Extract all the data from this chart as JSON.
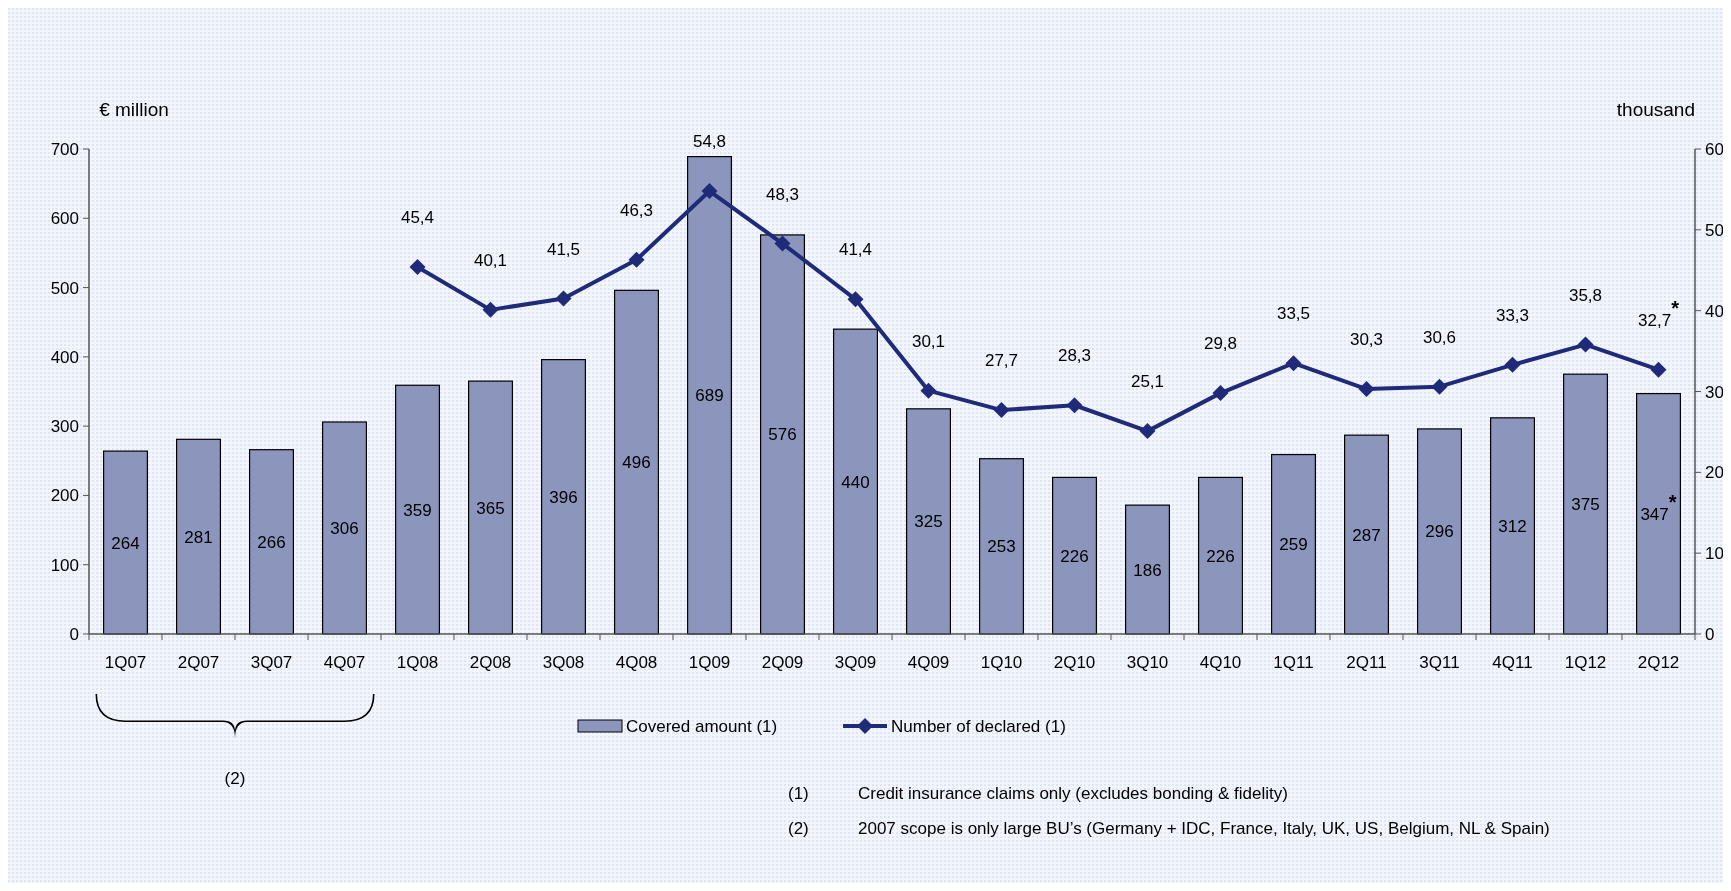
{
  "chart_data": {
    "type": "bar",
    "ylabel": "€ million",
    "y2label": "thousand",
    "categories": [
      "1Q07",
      "2Q07",
      "3Q07",
      "4Q07",
      "1Q08",
      "2Q08",
      "3Q08",
      "4Q08",
      "1Q09",
      "2Q09",
      "3Q09",
      "4Q09",
      "1Q10",
      "2Q10",
      "3Q10",
      "4Q10",
      "1Q11",
      "2Q11",
      "3Q11",
      "4Q11",
      "1Q12",
      "2Q12"
    ],
    "series": [
      {
        "name": "Covered amount (1)",
        "color": "#8c96bd",
        "values": [
          264,
          281,
          266,
          306,
          359,
          365,
          396,
          496,
          689,
          576,
          440,
          325,
          253,
          226,
          186,
          226,
          259,
          287,
          296,
          312,
          375,
          347
        ],
        "value_labels": [
          "264",
          "281",
          "266",
          "306",
          "359",
          "365",
          "396",
          "496",
          "689",
          "576",
          "440",
          "325",
          "253",
          "226",
          "186",
          "226",
          "259",
          "287",
          "296",
          "312",
          "375",
          "347$^{*}$"
        ]
      },
      {
        "name": "Number of declared (1)",
        "type": "line",
        "axis": "y2",
        "color": "#1f2a78",
        "marker": "diamond",
        "values": [
          null,
          null,
          null,
          null,
          45.4,
          40.1,
          41.5,
          46.3,
          54.8,
          48.3,
          41.4,
          30.1,
          27.7,
          28.3,
          25.1,
          29.8,
          33.5,
          30.3,
          30.6,
          33.3,
          35.8,
          32.7
        ],
        "value_labels": [
          null,
          null,
          null,
          null,
          "45,4",
          "40,1",
          "41,5",
          "46,3",
          "54,8",
          "48,3",
          "41,4",
          "30,1",
          "27,7",
          "28,3",
          "25,1",
          "29,8",
          "33,5",
          "30,3",
          "30,6",
          "33,3",
          "35,8",
          "32,7$^{*}$"
        ]
      }
    ],
    "ylim": [
      0,
      700
    ],
    "yticks": [
      0,
      100,
      200,
      300,
      400,
      500,
      600,
      700
    ],
    "y2lim": [
      0,
      60
    ],
    "y2ticks": [
      0,
      10,
      20,
      30,
      40,
      50,
      60
    ],
    "grid": false,
    "legend": "bottom",
    "annotations": [
      "(2)",
      "(1)\tCredit insurance claims only (excludes bonding & fidelity)",
      "(2)\t2007 scope is only large BU’s (Germany + IDC, France, Italy, UK, US, Belgium, NL & Spain)"
    ]
  }
}
